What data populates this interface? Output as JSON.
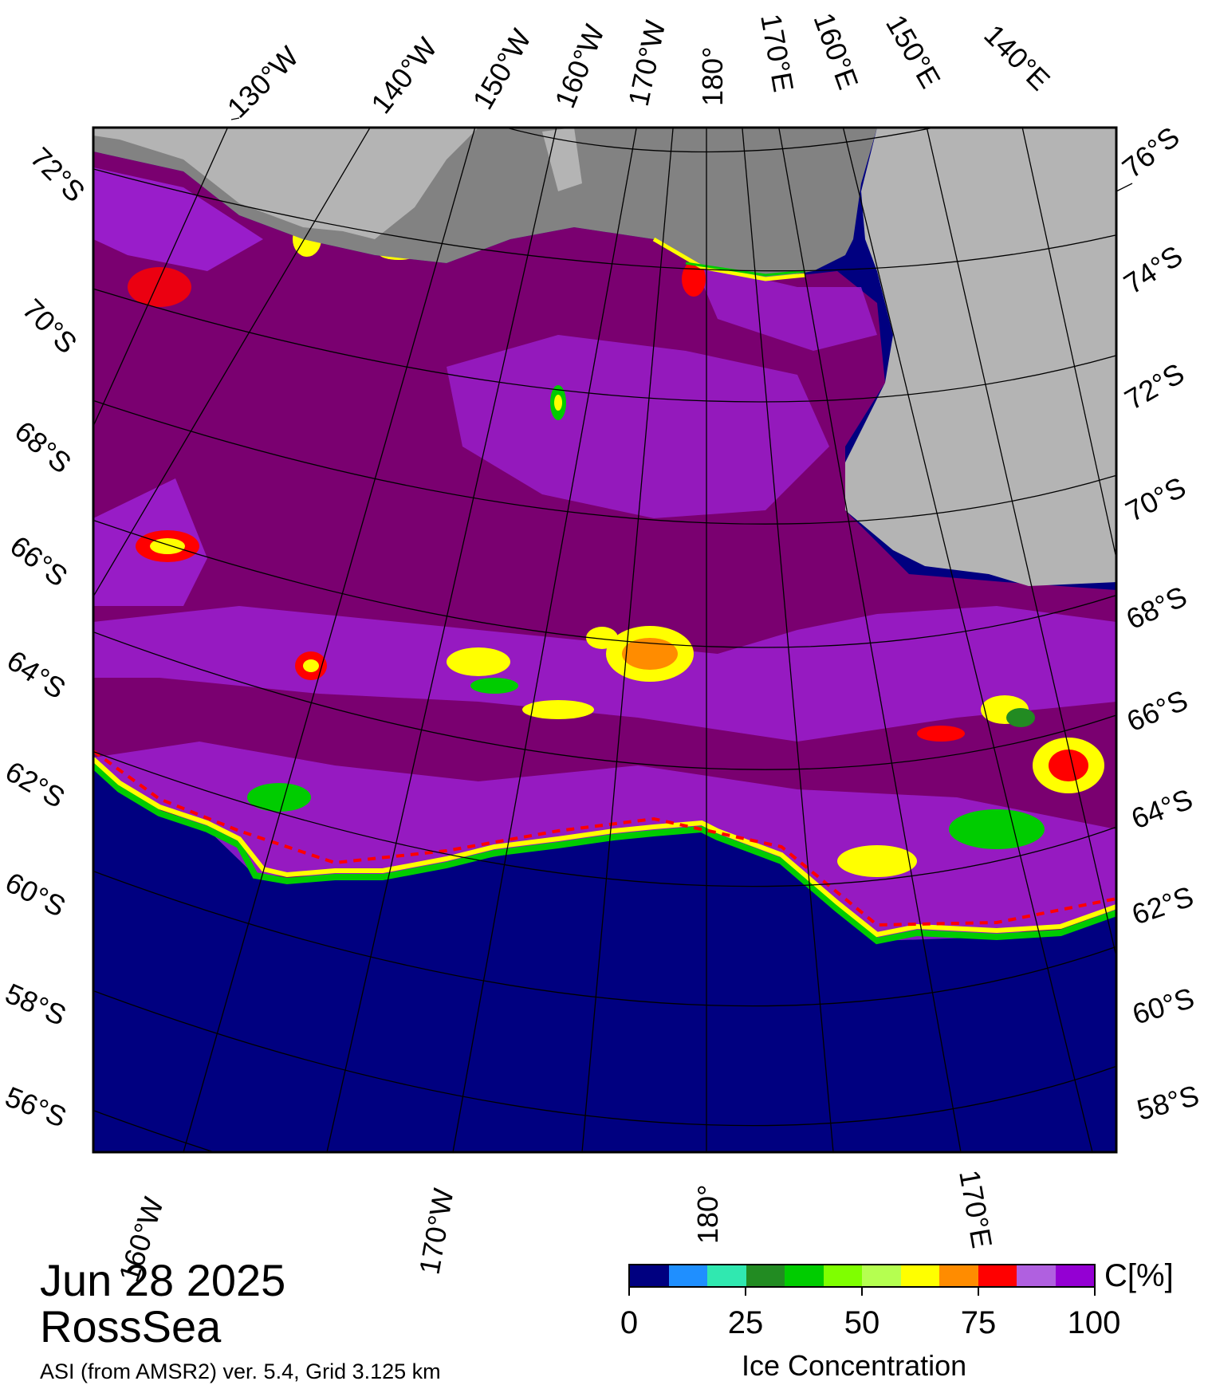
{
  "map": {
    "date": "Jun 28 2025",
    "region": "RossSea",
    "product": "ASI (from AMSR2) ver. 5.4,  Grid 3.125 km",
    "top_lon_labels": [
      "130°W",
      "140°W",
      "150°W",
      "160°W",
      "170°W",
      "180°",
      "170°E",
      "160°E",
      "150°E",
      "140°E"
    ],
    "left_lat_labels": [
      "72°S",
      "70°S",
      "68°S",
      "66°S",
      "64°S",
      "62°S",
      "60°S",
      "58°S",
      "56°S"
    ],
    "right_lat_labels": [
      "76°S",
      "74°S",
      "72°S",
      "70°S",
      "68°S",
      "66°S",
      "64°S",
      "62°S",
      "60°S",
      "58°S"
    ],
    "bottom_lon_labels": [
      "160°W",
      "170°W",
      "180°",
      "170°E"
    ],
    "colors": {
      "open_ocean": "#000080",
      "dense_ice": "#7a0070",
      "mid_ice": "#9b1fcf",
      "land_ice": "#b4b4b4",
      "land_shadow": "#828282"
    }
  },
  "colorbar": {
    "title": "Ice Concentration",
    "unit": "C[%]",
    "ticks": [
      "0",
      "25",
      "50",
      "75",
      "100"
    ],
    "colors": [
      "#000080",
      "#1f8fff",
      "#30e8b0",
      "#228b22",
      "#00cc00",
      "#7fff00",
      "#b5ff50",
      "#ffff00",
      "#ff8c00",
      "#ff0000",
      "#b060e0",
      "#9400d3"
    ]
  }
}
